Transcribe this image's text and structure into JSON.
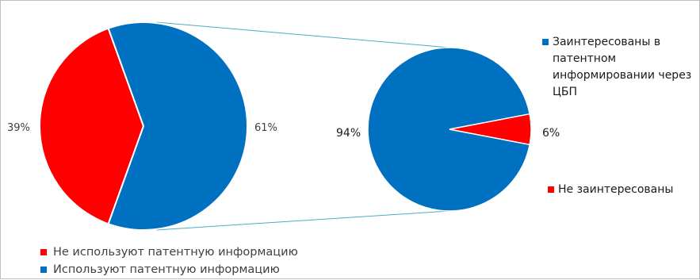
{
  "colors": {
    "red": "#ff0000",
    "blue": "#0070c0",
    "connector": "#4bacc6"
  },
  "chart_data": {
    "type": "pie",
    "title": "",
    "pies": [
      {
        "id": "main",
        "slices": [
          {
            "label": "Не используют патентную информацию",
            "value": 39,
            "display": "39%",
            "color": "#ff0000"
          },
          {
            "label": "Используют патентную информацию",
            "value": 61,
            "display": "61%",
            "color": "#0070c0"
          }
        ]
      },
      {
        "id": "secondary",
        "slices": [
          {
            "label": "Заинтересованы в патентном информировании через ЦБП",
            "value": 94,
            "display": "94%",
            "color": "#0070c0"
          },
          {
            "label": "Не заинтересованы",
            "value": 6,
            "display": "6%",
            "color": "#ff0000"
          }
        ]
      }
    ],
    "legend_main": [
      {
        "label": "Не используют патентную информацию",
        "color": "#ff0000"
      },
      {
        "label": "Используют патентную информацию",
        "color": "#0070c0"
      }
    ],
    "legend_secondary": [
      {
        "label": "Заинтересованы в патентном информировании через ЦБП",
        "color": "#0070c0"
      },
      {
        "label": "Не заинтересованы",
        "color": "#ff0000"
      }
    ]
  }
}
